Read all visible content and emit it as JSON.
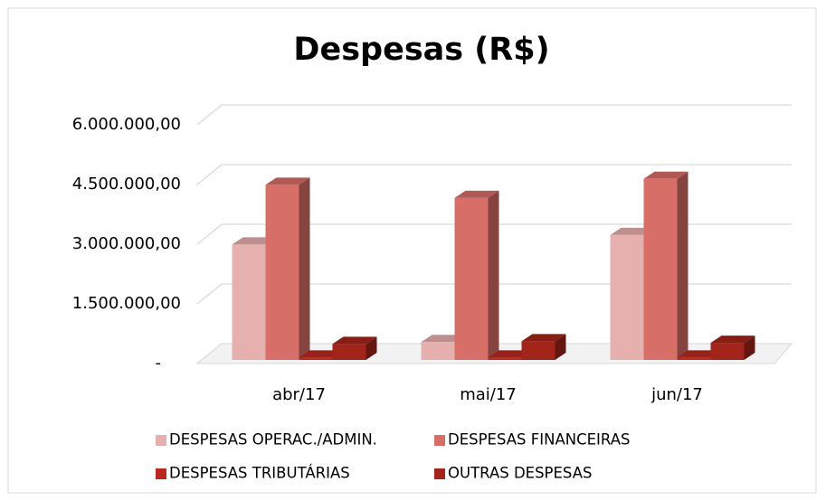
{
  "chart_data": {
    "type": "bar3d",
    "title": "Despesas (R$)",
    "categories": [
      "abr/17",
      "mai/17",
      "jun/17"
    ],
    "series": [
      {
        "name": "DESPESAS OPERAC./ADMIN.",
        "color": "#e6b0ae",
        "values": [
          2900000,
          450000,
          3140000
        ]
      },
      {
        "name": "DESPESAS FINANCEIRAS",
        "color": "#d86e68",
        "values": [
          4400000,
          4070000,
          4550000
        ]
      },
      {
        "name": "DESPESAS TRIBUTÁRIAS",
        "color": "#b82a1f",
        "values": [
          60000,
          60000,
          60000
        ]
      },
      {
        "name": "OUTRAS DESPESAS",
        "color": "#a3241a",
        "values": [
          400000,
          470000,
          430000
        ]
      }
    ],
    "ylim": [
      0,
      6000000
    ],
    "yticks": [
      {
        "value": 0,
        "label": "-"
      },
      {
        "value": 1500000,
        "label": "1.500.000,00"
      },
      {
        "value": 3000000,
        "label": "3.000.000,00"
      },
      {
        "value": 4500000,
        "label": "4.500.000,00"
      },
      {
        "value": 6000000,
        "label": "6.000.000,00"
      }
    ],
    "grid": true
  }
}
